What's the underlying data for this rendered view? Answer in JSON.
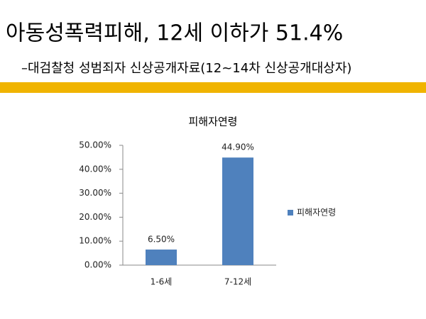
{
  "slide": {
    "title": "아동성폭력피해, 12세 이하가 51.4%",
    "subtitle": "–대검찰청 성범죄자 신상공개자료(12~14차 신상공개대상자)"
  },
  "chart_data": {
    "type": "bar",
    "title": "피해자연령",
    "categories": [
      "1-6세",
      "7-12세"
    ],
    "series": [
      {
        "name": "피해자연령",
        "color": "#4f81bd",
        "values": [
          6.5,
          44.9
        ],
        "value_labels": [
          "6.50%",
          "44.90%"
        ]
      }
    ],
    "ylim": [
      0,
      50
    ],
    "yticks": [
      {
        "value": 0,
        "label": "0.00%"
      },
      {
        "value": 10,
        "label": "10.00%"
      },
      {
        "value": 20,
        "label": "20.00%"
      },
      {
        "value": 30,
        "label": "30.00%"
      },
      {
        "value": 40,
        "label": "40.00%"
      },
      {
        "value": 50,
        "label": "50.00%"
      }
    ],
    "legend": "right"
  }
}
